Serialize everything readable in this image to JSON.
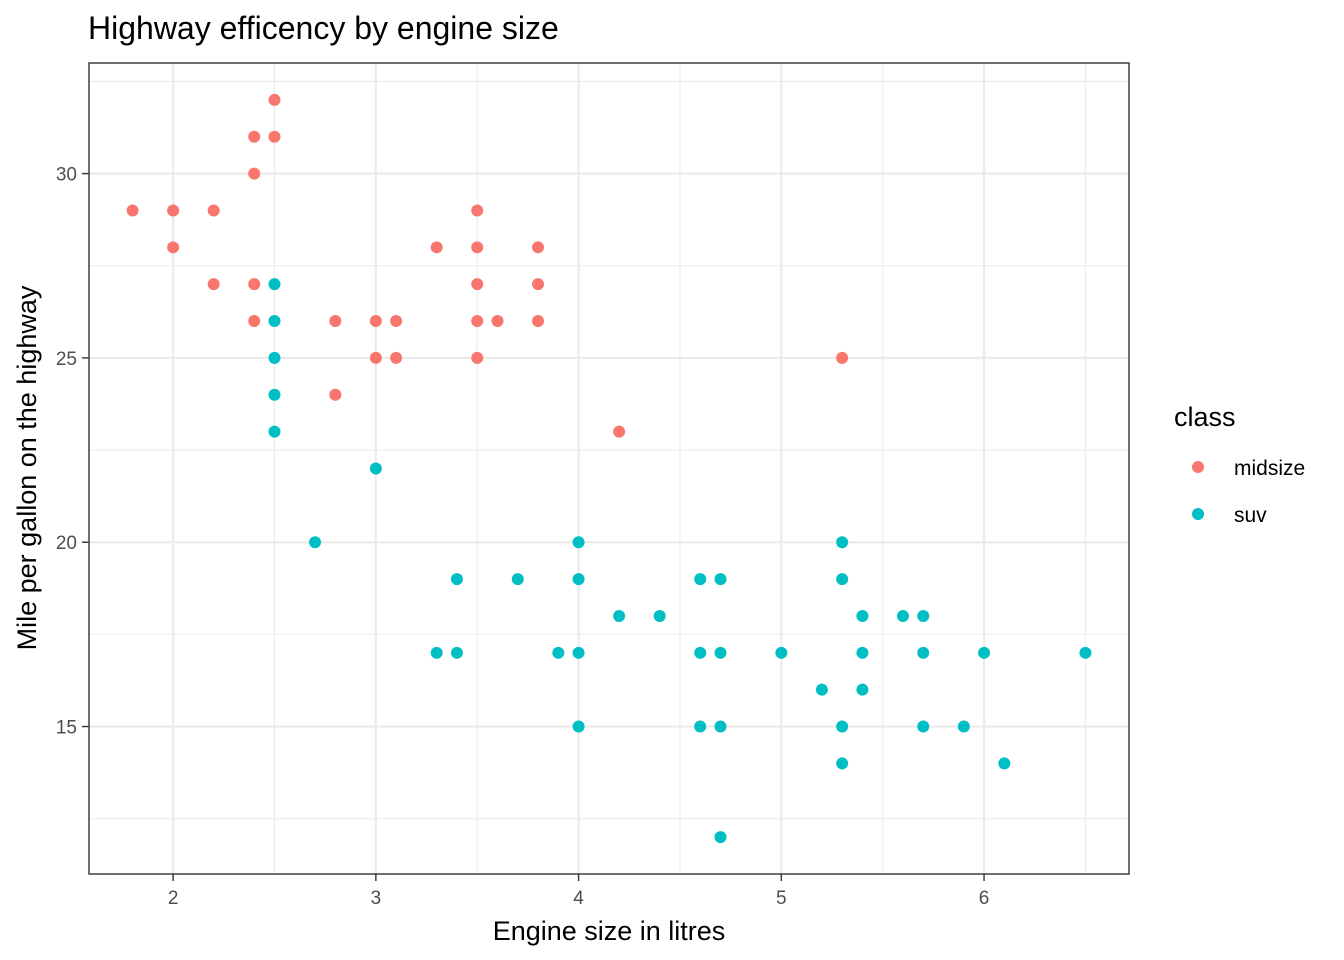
{
  "chart_data": {
    "type": "scatter",
    "title": "Highway efficency by engine size",
    "xlabel": "Engine size in litres",
    "ylabel": "Mile per gallon on the highway",
    "xlim": [
      1.585,
      6.715
    ],
    "ylim": [
      11.0,
      33.0
    ],
    "x_ticks": [
      2,
      3,
      4,
      5,
      6
    ],
    "y_ticks": [
      15,
      20,
      25,
      30
    ],
    "grid": true,
    "legend": {
      "title": "class",
      "placement": "right",
      "entries": [
        {
          "label": "midsize",
          "color": "#F8766D"
        },
        {
          "label": "suv",
          "color": "#00BFC4"
        }
      ]
    },
    "series": [
      {
        "name": "midsize",
        "color": "#F8766D",
        "points": [
          [
            1.8,
            29
          ],
          [
            2.0,
            29
          ],
          [
            2.0,
            28
          ],
          [
            2.2,
            29
          ],
          [
            2.2,
            27
          ],
          [
            2.4,
            31
          ],
          [
            2.4,
            30
          ],
          [
            2.4,
            27
          ],
          [
            2.4,
            26
          ],
          [
            2.5,
            32
          ],
          [
            2.5,
            31
          ],
          [
            2.8,
            26
          ],
          [
            2.8,
            24
          ],
          [
            3.0,
            26
          ],
          [
            3.0,
            25
          ],
          [
            3.1,
            26
          ],
          [
            3.1,
            25
          ],
          [
            3.3,
            28
          ],
          [
            3.5,
            29
          ],
          [
            3.5,
            28
          ],
          [
            3.5,
            27
          ],
          [
            3.5,
            26
          ],
          [
            3.5,
            25
          ],
          [
            3.6,
            26
          ],
          [
            3.8,
            28
          ],
          [
            3.8,
            27
          ],
          [
            3.8,
            26
          ],
          [
            4.2,
            23
          ],
          [
            5.3,
            25
          ]
        ]
      },
      {
        "name": "suv",
        "color": "#00BFC4",
        "points": [
          [
            2.5,
            27
          ],
          [
            2.5,
            26
          ],
          [
            2.5,
            25
          ],
          [
            2.5,
            24
          ],
          [
            2.5,
            23
          ],
          [
            2.7,
            20
          ],
          [
            3.0,
            22
          ],
          [
            3.3,
            17
          ],
          [
            3.4,
            19
          ],
          [
            3.4,
            17
          ],
          [
            3.7,
            19
          ],
          [
            3.9,
            17
          ],
          [
            4.0,
            20
          ],
          [
            4.0,
            19
          ],
          [
            4.0,
            17
          ],
          [
            4.0,
            15
          ],
          [
            4.2,
            18
          ],
          [
            4.4,
            18
          ],
          [
            4.6,
            19
          ],
          [
            4.6,
            17
          ],
          [
            4.6,
            15
          ],
          [
            4.7,
            19
          ],
          [
            4.7,
            17
          ],
          [
            4.7,
            15
          ],
          [
            4.7,
            12
          ],
          [
            5.0,
            17
          ],
          [
            5.2,
            16
          ],
          [
            5.3,
            20
          ],
          [
            5.3,
            19
          ],
          [
            5.3,
            15
          ],
          [
            5.3,
            14
          ],
          [
            5.4,
            18
          ],
          [
            5.4,
            17
          ],
          [
            5.4,
            16
          ],
          [
            5.6,
            18
          ],
          [
            5.7,
            18
          ],
          [
            5.7,
            17
          ],
          [
            5.7,
            15
          ],
          [
            5.9,
            15
          ],
          [
            6.0,
            17
          ],
          [
            6.1,
            14
          ],
          [
            6.5,
            17
          ]
        ]
      }
    ]
  }
}
